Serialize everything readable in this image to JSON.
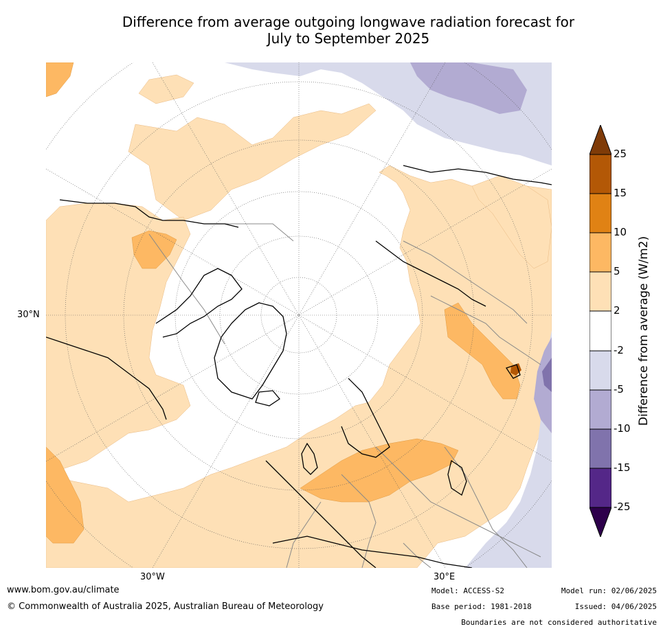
{
  "title": {
    "line1": "Difference from average outgoing longwave radiation forecast for",
    "line2": "July to September 2025"
  },
  "map": {
    "projection": "north-polar-stereographic",
    "lat_labels": [
      "30°N"
    ],
    "lon_labels": [
      "30°W",
      "30°E"
    ]
  },
  "colorbar": {
    "label": "Difference from average (W/m2)",
    "ticks": [
      "25",
      "15",
      "10",
      "5",
      "2",
      "-2",
      "-5",
      "-10",
      "-15",
      "-25"
    ],
    "colors": {
      "gt25": "#7f3b08",
      "15_25": "#b35806",
      "10_15": "#e08214",
      "5_10": "#fdb863",
      "2_5": "#fee0b6",
      "m2_2": "#ffffff",
      "m5_m2": "#d8daeb",
      "m10_m5": "#b2abd2",
      "m15_m10": "#8073ac",
      "m25_m15": "#542788",
      "lt_m25": "#2d004b"
    }
  },
  "footer": {
    "website": "www.bom.gov.au/climate",
    "copyright": "© Commonwealth of Australia 2025, Australian Bureau of Meteorology",
    "model": "Model: ACCESS-S2",
    "base_period": "Base period: 1981-2018",
    "model_run": "Model run: 02/06/2025",
    "issued": "Issued: 04/06/2025",
    "boundaries": "Boundaries are not considered authoritative"
  }
}
